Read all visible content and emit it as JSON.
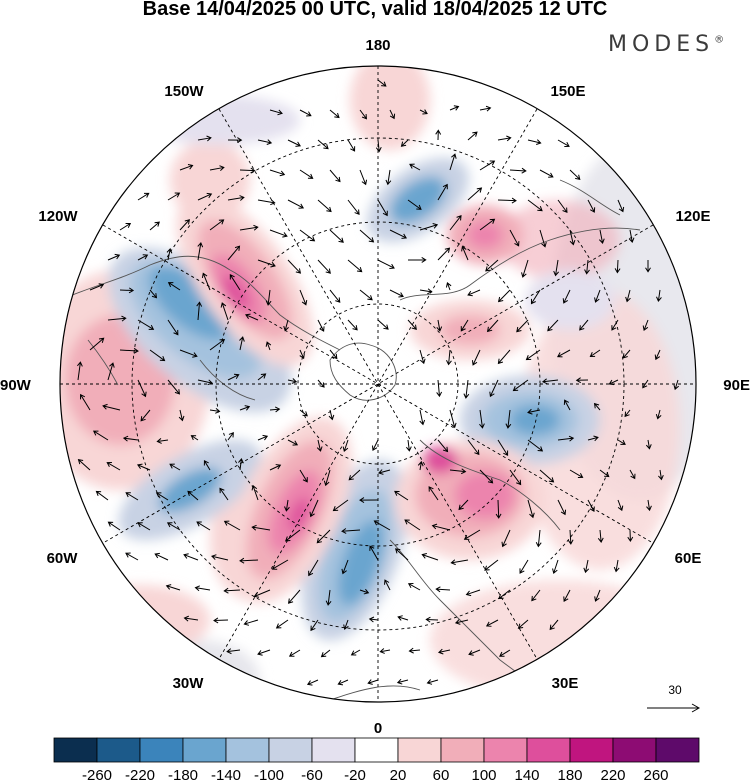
{
  "title": "Base 14/04/2025 00 UTC, valid 18/04/2025 12 UTC",
  "brand": {
    "text": "MODES",
    "mark": "®"
  },
  "map": {
    "projection": "north-polar-stereographic",
    "longitude_labels": {
      "top": "180",
      "bottom": "0",
      "left": "90W",
      "right": "90E",
      "upper_left_1": "150W",
      "upper_left_2": "120W",
      "upper_right_1": "150E",
      "upper_right_2": "120E",
      "lower_left_1": "60W",
      "lower_left_2": "30W",
      "lower_right_1": "60E",
      "lower_right_2": "30E"
    },
    "wind_vector_reference": {
      "value": "30"
    }
  },
  "colorbar": {
    "ticks": [
      "-260",
      "-220",
      "-180",
      "-140",
      "-100",
      "-60",
      "-20",
      "20",
      "60",
      "100",
      "140",
      "180",
      "220",
      "260"
    ],
    "colors": [
      "#0b2e4f",
      "#1c5a8a",
      "#3b84bb",
      "#6aa5cf",
      "#a4c2de",
      "#c8d2e4",
      "#e4e1ef",
      "#ffffff",
      "#f8d6d6",
      "#f1aeb9",
      "#ec84ad",
      "#de4f9c",
      "#c0157f",
      "#8d0c73",
      "#5e0a6a"
    ]
  }
}
